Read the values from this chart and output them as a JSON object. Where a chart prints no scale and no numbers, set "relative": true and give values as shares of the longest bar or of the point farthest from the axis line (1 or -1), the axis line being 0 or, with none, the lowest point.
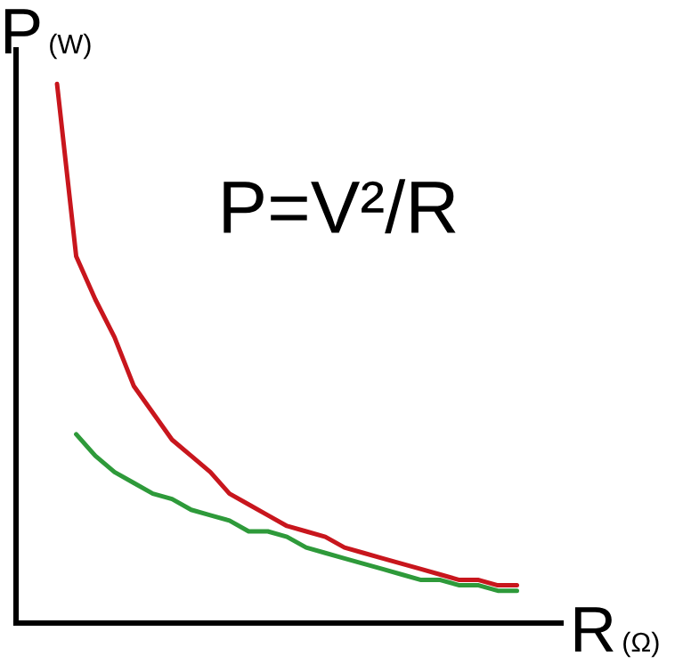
{
  "chart_data": {
    "type": "line",
    "relative": true,
    "xlabel": "R (Ω)",
    "ylabel": "P (W)",
    "annotations": [
      "P=V²/R"
    ],
    "marker": "none",
    "line_style": "solid",
    "categories": [
      null,
      null,
      null,
      null,
      null,
      null,
      null,
      null,
      null,
      null,
      null,
      null,
      null,
      null,
      null,
      null,
      null,
      null,
      null,
      null,
      null,
      null,
      null,
      null,
      null
    ],
    "series": [
      {
        "color": "#c8161d",
        "values": [
          1,
          0.68,
          0.6,
          0.53,
          0.44,
          0.39,
          0.34,
          0.31,
          0.28,
          0.24,
          0.22,
          0.2,
          0.18,
          0.17,
          0.16,
          0.14,
          0.13,
          0.12,
          0.11,
          0.1,
          0.09,
          0.08,
          0.08,
          0.07,
          0.07
        ]
      },
      {
        "color": "#2e9a3a",
        "values": [
          null,
          0.35,
          0.31,
          0.28,
          0.26,
          0.24,
          0.23,
          0.21,
          0.2,
          0.19,
          0.17,
          0.17,
          0.16,
          0.14,
          0.13,
          0.12,
          0.11,
          0.1,
          0.09,
          0.08,
          0.08,
          0.07,
          0.07,
          0.06,
          0.06
        ]
      }
    ]
  }
}
